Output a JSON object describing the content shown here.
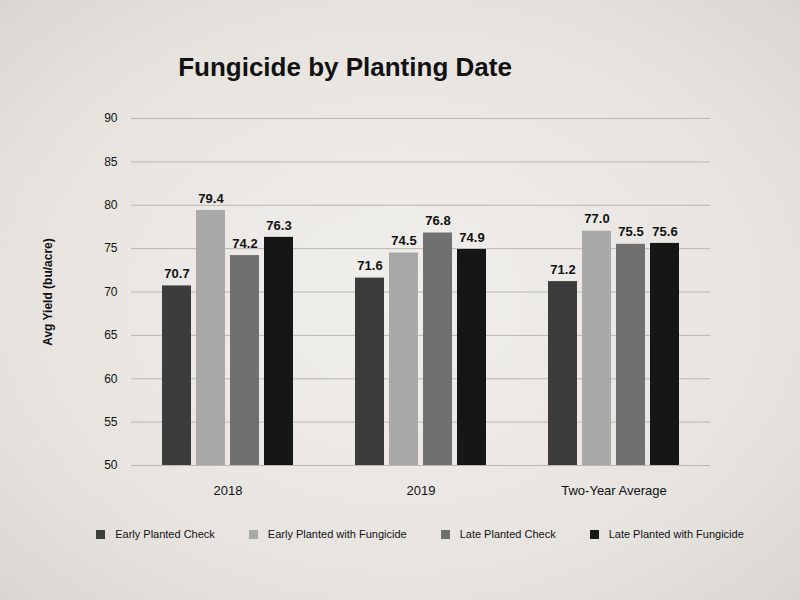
{
  "chart_data": {
    "type": "bar",
    "title": "Fungicide by Planting Date",
    "y_label": "Avg Yield (bu/acre)",
    "categories": [
      "2018",
      "2019",
      "Two-Year Average"
    ],
    "series": [
      {
        "name": "Early Planted Check",
        "color": "#3c3c3c",
        "values": [
          70.7,
          71.6,
          71.2
        ],
        "value_labels": [
          "70.7",
          "71.6",
          "71.2"
        ]
      },
      {
        "name": "Early Planted with Fungicide",
        "color": "#a9a9a9",
        "values": [
          79.4,
          74.5,
          77.0
        ],
        "value_labels": [
          "79.4",
          "74.5",
          "77.0"
        ]
      },
      {
        "name": "Late Planted Check",
        "color": "#707070",
        "values": [
          74.2,
          76.8,
          75.5
        ],
        "value_labels": [
          "74.2",
          "76.8",
          "75.5"
        ]
      },
      {
        "name": "Late Planted with Fungicide",
        "color": "#161616",
        "values": [
          76.3,
          74.9,
          75.6
        ],
        "value_labels": [
          "76.3",
          "74.9",
          "75.6"
        ]
      }
    ],
    "ylim": [
      50,
      90
    ],
    "yticks": [
      50,
      55,
      60,
      65,
      70,
      75,
      80,
      85,
      90
    ],
    "grid": true,
    "data_labels": true,
    "legend": "bottom"
  }
}
